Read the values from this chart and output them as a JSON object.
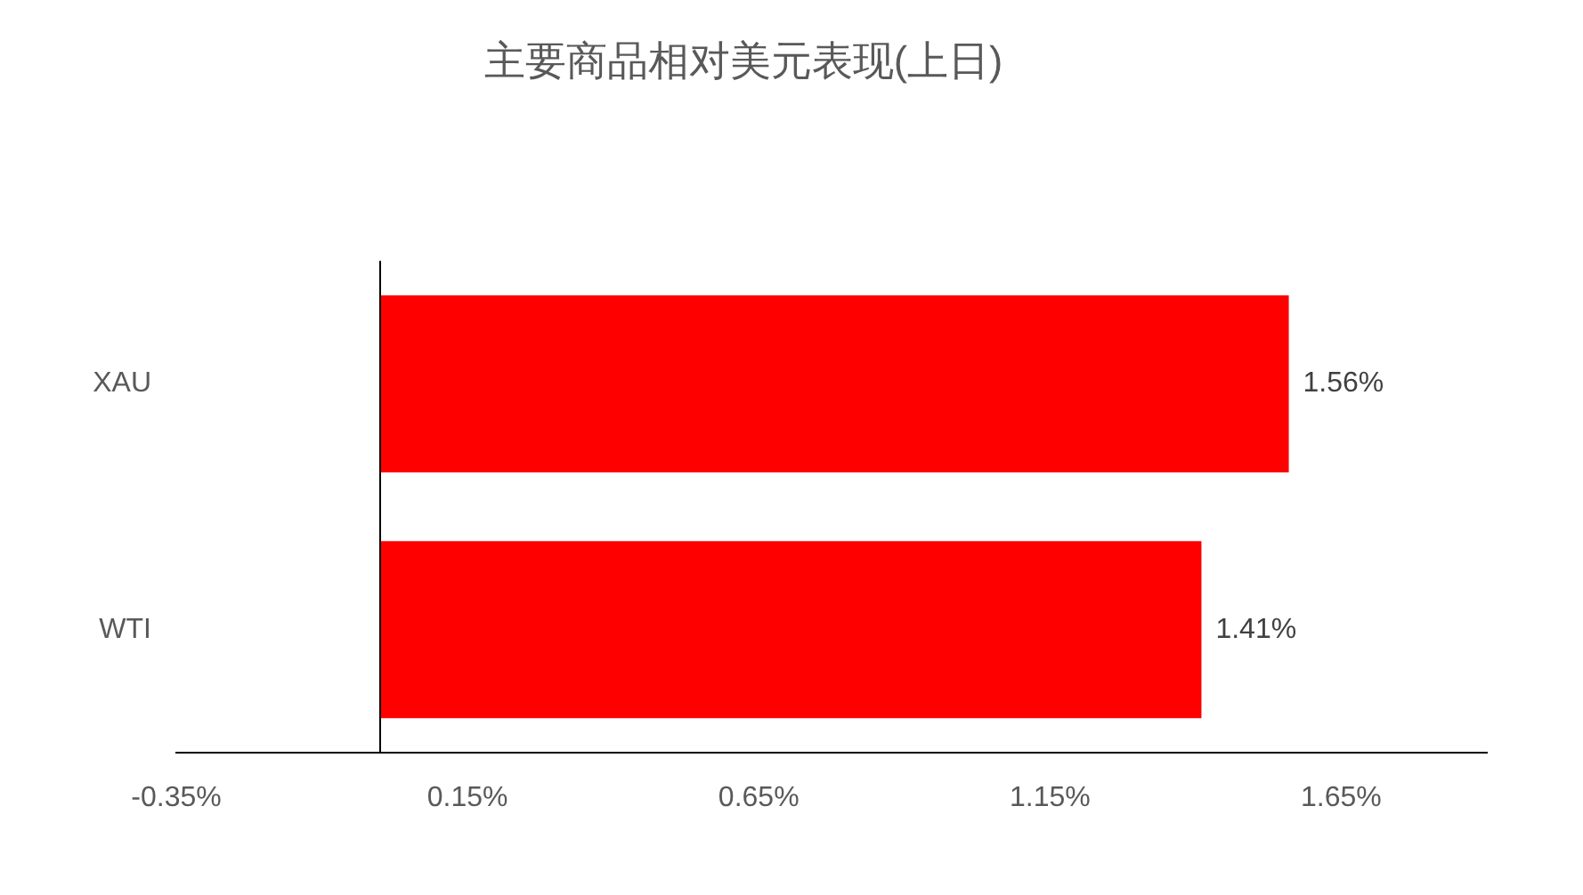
{
  "chart_data": {
    "type": "bar",
    "orientation": "horizontal",
    "title": "主要商品相对美元表现(上日)",
    "categories": [
      "XAU",
      "WTI"
    ],
    "series": [
      {
        "color": "#ff0000",
        "values": [
          1.56,
          1.41
        ]
      }
    ],
    "value_labels": [
      "1.56%",
      "1.41%"
    ],
    "xlim": [
      -0.35,
      1.9
    ],
    "xticks": [
      {
        "value": -0.35,
        "label": "-0.35%"
      },
      {
        "value": 0.15,
        "label": "0.15%"
      },
      {
        "value": 0.65,
        "label": "0.65%"
      },
      {
        "value": 1.15,
        "label": "1.15%"
      },
      {
        "value": 1.65,
        "label": "1.65%"
      }
    ],
    "grid": false,
    "legend": false
  }
}
